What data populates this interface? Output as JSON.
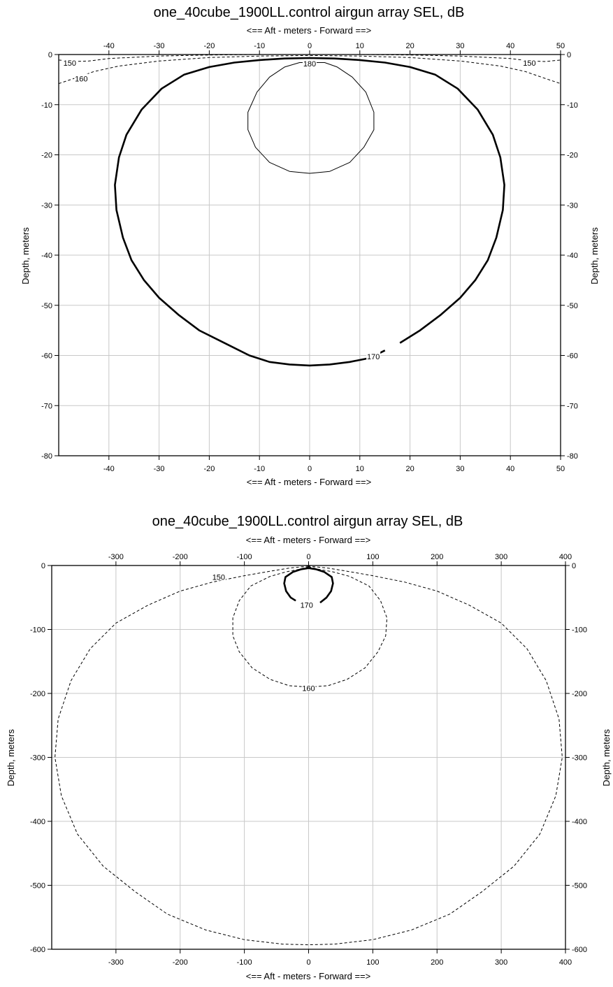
{
  "chart_data": [
    {
      "type": "contour",
      "title": "one_40cube_1900LL.control airgun array SEL, dB",
      "xlabel": "<==   Aft    - meters -  Forward  ==>",
      "ylabel": "Depth, meters",
      "xlim": [
        -50,
        50
      ],
      "ylim": [
        -80,
        0
      ],
      "x_ticks": [
        -40,
        -30,
        -20,
        -10,
        0,
        10,
        20,
        30,
        40,
        50
      ],
      "y_ticks": [
        0,
        -10,
        -20,
        -30,
        -40,
        -50,
        -60,
        -70,
        -80
      ],
      "grid": true,
      "contours": [
        {
          "level": "180",
          "style": "thin-solid",
          "points": [
            [
              -2,
              -1.6
            ],
            [
              -5,
              -2.5
            ],
            [
              -8,
              -4.5
            ],
            [
              -10.5,
              -7.5
            ],
            [
              -12.3,
              -11.5
            ],
            [
              -12.3,
              -15
            ],
            [
              -10.8,
              -18.5
            ],
            [
              -8,
              -21.5
            ],
            [
              -4,
              -23.3
            ],
            [
              0,
              -23.7
            ],
            [
              4,
              -23.3
            ],
            [
              8,
              -21.5
            ],
            [
              10.8,
              -18.5
            ],
            [
              12.8,
              -15
            ],
            [
              12.8,
              -11.5
            ],
            [
              11.2,
              -7.5
            ],
            [
              8.5,
              -4.5
            ],
            [
              5.5,
              -2.5
            ],
            [
              3,
              -1.6
            ]
          ],
          "closed": true,
          "label_at": [
            0,
            -1.8
          ]
        },
        {
          "level": "170",
          "style": "thick-solid",
          "points": [
            [
              15,
              -59
            ],
            [
              12,
              -60.5
            ],
            [
              8,
              -61.3
            ],
            [
              4,
              -61.8
            ],
            [
              0,
              -62
            ],
            [
              -4,
              -61.8
            ],
            [
              -8,
              -61.3
            ],
            [
              -12,
              -60
            ],
            [
              -17,
              -57.5
            ],
            [
              -22,
              -55
            ],
            [
              -26,
              -52
            ],
            [
              -30,
              -48.5
            ],
            [
              -33,
              -45
            ],
            [
              -35.5,
              -41
            ],
            [
              -37.2,
              -36.5
            ],
            [
              -38.5,
              -31
            ],
            [
              -38.8,
              -26
            ],
            [
              -38,
              -20.5
            ],
            [
              -36.5,
              -16
            ],
            [
              -33.5,
              -11
            ],
            [
              -29.5,
              -6.8
            ],
            [
              -25,
              -4
            ],
            [
              -20,
              -2.5
            ],
            [
              -15,
              -1.6
            ],
            [
              -10,
              -1.1
            ],
            [
              -5,
              -0.8
            ],
            [
              0,
              -0.7
            ],
            [
              5,
              -0.8
            ],
            [
              10,
              -1.1
            ],
            [
              15,
              -1.6
            ],
            [
              20,
              -2.5
            ],
            [
              25,
              -4
            ],
            [
              29.5,
              -6.8
            ],
            [
              33.5,
              -11
            ],
            [
              36.5,
              -16
            ],
            [
              38,
              -20.5
            ],
            [
              38.8,
              -26
            ],
            [
              38.5,
              -31
            ],
            [
              37.2,
              -36.5
            ],
            [
              35.5,
              -41
            ],
            [
              33,
              -45
            ],
            [
              30,
              -48.5
            ],
            [
              26,
              -52
            ],
            [
              22,
              -55
            ],
            [
              18,
              -57.5
            ]
          ],
          "closed": false,
          "label_at": [
            12.7,
            -60.2
          ]
        },
        {
          "level": "160",
          "style": "dashed",
          "points": [
            [
              -50,
              -5.8
            ],
            [
              -47,
              -4.8
            ],
            [
              -43,
              -3.4
            ],
            [
              -38,
              -2.3
            ],
            [
              -30,
              -1.3
            ],
            [
              -20,
              -0.6
            ],
            [
              -10,
              -0.3
            ],
            [
              0,
              -0.2
            ],
            [
              10,
              -0.3
            ],
            [
              20,
              -0.6
            ],
            [
              30,
              -1.3
            ],
            [
              38,
              -2.3
            ],
            [
              43,
              -3.4
            ],
            [
              47,
              -4.8
            ],
            [
              50,
              -5.8
            ]
          ],
          "closed": false,
          "label_at": [
            -45.5,
            -4.8
          ]
        },
        {
          "level": "150",
          "style": "dashed",
          "points": [
            [
              -50,
              -1.1
            ],
            [
              -47,
              -1.4
            ],
            [
              -44,
              -1.3
            ],
            [
              -40,
              -0.8
            ],
            [
              -30,
              -0.3
            ],
            [
              -20,
              -0.1
            ],
            [
              -10,
              0
            ],
            [
              0,
              0
            ],
            [
              10,
              0
            ],
            [
              20,
              -0.1
            ],
            [
              30,
              -0.3
            ],
            [
              40,
              -0.8
            ],
            [
              44,
              -1.3
            ],
            [
              47,
              -1.4
            ],
            [
              50,
              -1.1
            ]
          ],
          "closed": false,
          "label_at": [
            -47.8,
            -1.7
          ],
          "label_at_2": [
            43.8,
            -1.7
          ]
        }
      ]
    },
    {
      "type": "contour",
      "title": "one_40cube_1900LL.control airgun array SEL, dB",
      "xlabel": "<==   Aft    - meters -  Forward  ==>",
      "ylabel": "Depth, meters",
      "xlim": [
        -400,
        400
      ],
      "ylim": [
        -600,
        0
      ],
      "x_ticks": [
        -300,
        -200,
        -100,
        0,
        100,
        200,
        300,
        400
      ],
      "y_ticks": [
        0,
        -100,
        -200,
        -300,
        -400,
        -500,
        -600
      ],
      "grid": true,
      "contours": [
        {
          "level": "170",
          "style": "thick-solid",
          "points": [
            [
              -20,
              -55
            ],
            [
              -28,
              -50
            ],
            [
              -35,
              -40
            ],
            [
              -38,
              -28
            ],
            [
              -36,
              -18
            ],
            [
              -24,
              -10
            ],
            [
              -12,
              -6
            ],
            [
              0,
              -4
            ],
            [
              12,
              -6
            ],
            [
              24,
              -10
            ],
            [
              36,
              -18
            ],
            [
              38,
              -28
            ],
            [
              35,
              -40
            ],
            [
              28,
              -50
            ],
            [
              18,
              -58
            ]
          ],
          "closed": false,
          "label_at": [
            -3,
            -62
          ]
        },
        {
          "level": "160",
          "style": "dashed",
          "points": [
            [
              0,
              -2
            ],
            [
              -15,
              -6
            ],
            [
              -35,
              -10
            ],
            [
              -60,
              -17
            ],
            [
              -90,
              -32
            ],
            [
              -108,
              -55
            ],
            [
              -118,
              -82
            ],
            [
              -118,
              -110
            ],
            [
              -108,
              -135
            ],
            [
              -88,
              -160
            ],
            [
              -60,
              -178
            ],
            [
              -30,
              -188
            ],
            [
              0,
              -190
            ],
            [
              30,
              -188
            ],
            [
              60,
              -178
            ],
            [
              88,
              -160
            ],
            [
              108,
              -135
            ],
            [
              120,
              -110
            ],
            [
              122,
              -82
            ],
            [
              112,
              -55
            ],
            [
              94,
              -32
            ],
            [
              64,
              -17
            ],
            [
              38,
              -10
            ],
            [
              16,
              -6
            ],
            [
              0,
              -2
            ]
          ],
          "closed": true,
          "label_at": [
            0,
            -192
          ]
        },
        {
          "level": "150",
          "style": "dashed",
          "points": [
            [
              0,
              -1
            ],
            [
              -30,
              -4
            ],
            [
              -60,
              -9
            ],
            [
              -100,
              -16
            ],
            [
              -150,
              -26
            ],
            [
              -200,
              -40
            ],
            [
              -250,
              -62
            ],
            [
              -300,
              -90
            ],
            [
              -340,
              -130
            ],
            [
              -370,
              -180
            ],
            [
              -390,
              -240
            ],
            [
              -395,
              -300
            ],
            [
              -385,
              -360
            ],
            [
              -360,
              -420
            ],
            [
              -320,
              -470
            ],
            [
              -270,
              -510
            ],
            [
              -220,
              -545
            ],
            [
              -160,
              -570
            ],
            [
              -100,
              -585
            ],
            [
              -40,
              -592
            ],
            [
              0,
              -593
            ],
            [
              40,
              -592
            ],
            [
              100,
              -585
            ],
            [
              160,
              -570
            ],
            [
              220,
              -545
            ],
            [
              270,
              -510
            ],
            [
              320,
              -470
            ],
            [
              360,
              -420
            ],
            [
              385,
              -360
            ],
            [
              395,
              -300
            ],
            [
              390,
              -240
            ],
            [
              370,
              -180
            ],
            [
              340,
              -130
            ],
            [
              300,
              -90
            ],
            [
              250,
              -62
            ],
            [
              200,
              -40
            ],
            [
              150,
              -26
            ],
            [
              100,
              -16
            ],
            [
              60,
              -9
            ],
            [
              30,
              -4
            ],
            [
              0,
              -1
            ]
          ],
          "closed": true,
          "label_at": [
            -140,
            -18
          ]
        }
      ]
    }
  ]
}
